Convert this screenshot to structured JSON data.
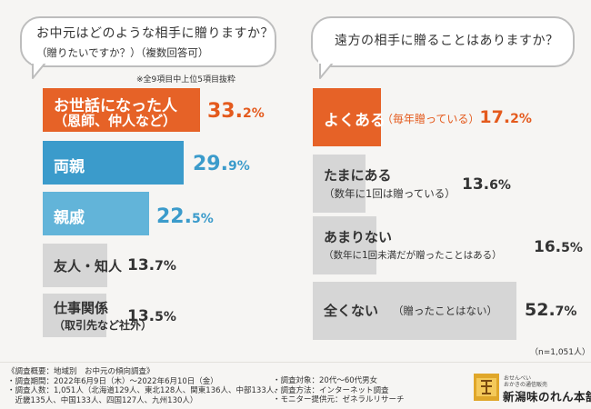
{
  "left_question": {
    "title": "お中元はどのような相手に贈りますか？",
    "subtitle": "（贈りたいですか？）（複数回答可）",
    "note": "※全9項目中上位5項目抜粋"
  },
  "right_question": {
    "title": "遠方の相手に贈ることはありますか？"
  },
  "colors": {
    "highlight": "#e66227",
    "blue_dark": "#3b9bcb",
    "blue_light": "#62b4d9",
    "gray": "#d6d6d6",
    "pct_orange": "#e45a1d",
    "pct_blue": "#3b9bcb",
    "pct_gray": "#333333"
  },
  "chart_data": [
    {
      "type": "bar",
      "orientation": "horizontal",
      "title": "お中元はどのような相手に贈りますか？（贈りたいですか？）（複数回答可）",
      "unit": "%",
      "xlim": [
        0,
        40
      ],
      "categories": [
        {
          "label": "お世話になった人",
          "sub": "（恩師、仲人など）"
        },
        {
          "label": "両親",
          "sub": ""
        },
        {
          "label": "親戚",
          "sub": ""
        },
        {
          "label": "友人・知人",
          "sub": ""
        },
        {
          "label": "仕事関係",
          "sub": "（取引先など社外）"
        }
      ],
      "values": [
        33.2,
        29.9,
        22.5,
        13.7,
        13.5
      ],
      "value_labels": [
        {
          "big": "33.",
          "small": "2%"
        },
        {
          "big": "29.",
          "small": "9%"
        },
        {
          "big": "22.",
          "small": "5%"
        },
        {
          "big": "13.",
          "small": "7%"
        },
        {
          "big": "13.",
          "small": "5%"
        }
      ],
      "bar_styles": [
        "highlight",
        "blue_dark",
        "blue_light",
        "gray",
        "gray"
      ]
    },
    {
      "type": "bar",
      "orientation": "horizontal",
      "title": "遠方の相手に贈ることはありますか？",
      "unit": "%",
      "xlim": [
        0,
        60
      ],
      "categories": [
        {
          "label": "よくある",
          "sub": "（毎年贈っている）"
        },
        {
          "label": "たまにある",
          "sub": "（数年に1回は贈っている）"
        },
        {
          "label": "あまりない",
          "sub": "（数年に1回未満だが贈ったことはある）"
        },
        {
          "label": "全くない",
          "sub": "（贈ったことはない）"
        }
      ],
      "values": [
        17.2,
        13.6,
        16.5,
        52.7
      ],
      "value_labels": [
        {
          "big": "17.",
          "small": "2%"
        },
        {
          "big": "13.",
          "small": "6%"
        },
        {
          "big": "16.",
          "small": "5%"
        },
        {
          "big": "52.",
          "small": "7%"
        }
      ],
      "bar_styles": [
        "highlight",
        "gray",
        "gray",
        "gray"
      ],
      "sample_note": "（n=1,051人）"
    }
  ],
  "footer": {
    "left": [
      "《調査概要：地域別　お中元の傾向調査》",
      "・調査期間：2022年6月9日（木）〜2022年6月10日（金）",
      "・調査人数：1,051人（北海道129人、東北128人、関東136人、中部133人、",
      "　近畿135人、中国133人、四国127人、九州130人）"
    ],
    "right": [
      "・調査対象：20代〜60代男女",
      "・調査方法：インターネット調査",
      "・モニター提供元：ゼネラルリサーチ"
    ]
  },
  "logo": {
    "small_line1": "おせんべい",
    "small_line2": "おかきの通信販売",
    "name": "新潟味のれん本舗"
  }
}
